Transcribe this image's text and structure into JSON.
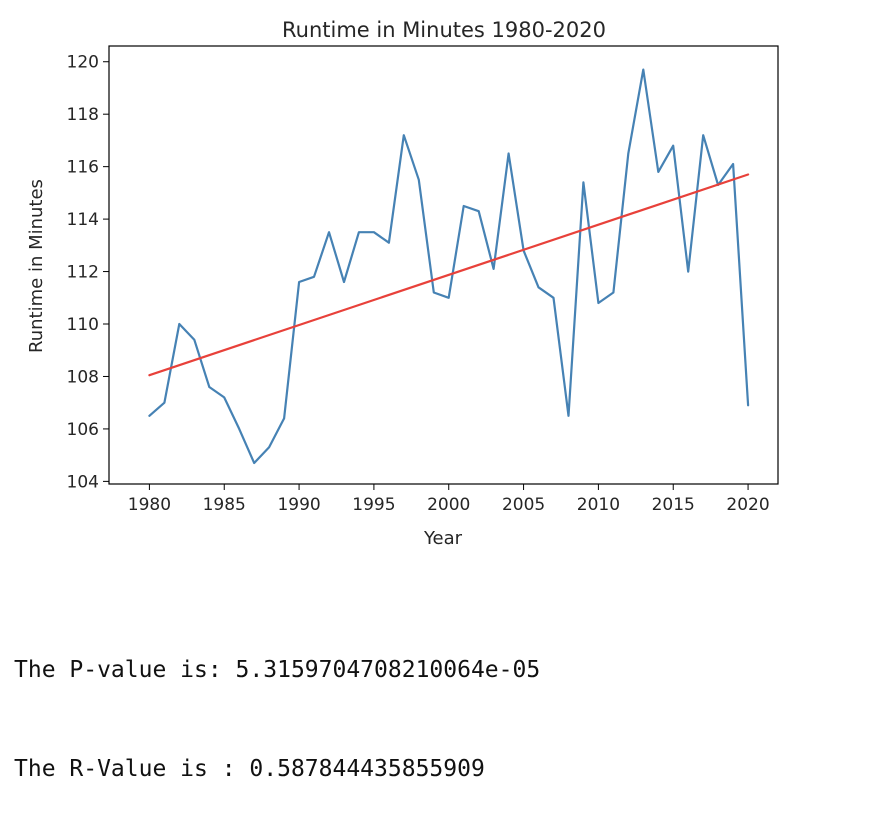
{
  "chart_data": {
    "type": "line",
    "title": "Runtime in Minutes 1980-2020",
    "xlabel": "Year",
    "ylabel": "Runtime in Minutes",
    "xlim": [
      1977.3,
      2022.0
    ],
    "ylim": [
      103.9,
      120.6
    ],
    "xticks": [
      1980,
      1985,
      1990,
      1995,
      2000,
      2005,
      2010,
      2015,
      2020
    ],
    "yticks": [
      104,
      106,
      108,
      110,
      112,
      114,
      116,
      118,
      120
    ],
    "grid": false,
    "series": [
      {
        "color": "#4682b4",
        "x": [
          1980,
          1981,
          1982,
          1983,
          1984,
          1985,
          1986,
          1987,
          1988,
          1989,
          1990,
          1991,
          1992,
          1993,
          1994,
          1995,
          1996,
          1997,
          1998,
          1999,
          2000,
          2001,
          2002,
          2003,
          2004,
          2005,
          2006,
          2007,
          2008,
          2009,
          2010,
          2011,
          2012,
          2013,
          2014,
          2015,
          2016,
          2017,
          2018,
          2019,
          2020
        ],
        "y": [
          106.5,
          107.0,
          110.0,
          109.4,
          107.6,
          107.2,
          106.0,
          104.7,
          105.3,
          106.4,
          111.6,
          111.8,
          113.5,
          111.6,
          113.5,
          113.5,
          113.1,
          117.2,
          115.5,
          111.2,
          111.0,
          114.5,
          114.3,
          112.1,
          116.5,
          112.8,
          111.4,
          111.0,
          106.5,
          115.4,
          110.8,
          111.2,
          116.5,
          119.7,
          115.8,
          116.8,
          112.0,
          117.2,
          115.3,
          116.1,
          106.9
        ]
      },
      {
        "color": "#e8413a",
        "x": [
          1980,
          2020
        ],
        "y": [
          108.05,
          115.7
        ]
      }
    ]
  },
  "output": {
    "p_value_line": "The P-value is: 5.3159704708210064e-05",
    "r_value_line": "The R-Value is : 0.587844435855909"
  }
}
